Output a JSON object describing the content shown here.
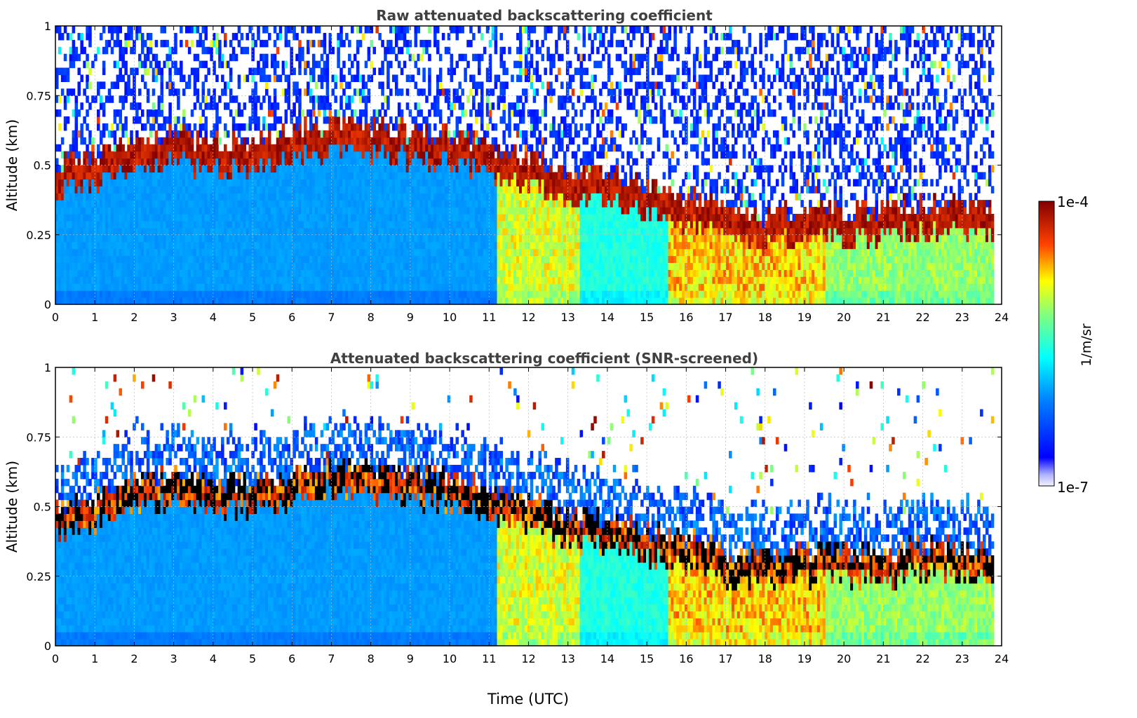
{
  "chart_data": [
    {
      "type": "heatmap",
      "title": "Raw attenuated backscattering coefficient",
      "xlabel": "",
      "ylabel": "Altitude (km)",
      "xlim": [
        0,
        24
      ],
      "ylim": [
        0,
        1
      ],
      "xticks": [
        "0",
        "1",
        "2",
        "3",
        "4",
        "5",
        "6",
        "7",
        "8",
        "9",
        "10",
        "11",
        "12",
        "13",
        "14",
        "15",
        "16",
        "17",
        "18",
        "19",
        "20",
        "21",
        "22",
        "23",
        "24"
      ],
      "yticks": [
        "0",
        "0.25",
        "0.5",
        "0.75",
        "1"
      ],
      "grid": true,
      "screened": false,
      "aerosol_layer_top_km": [
        {
          "t": 0,
          "z": 0.45
        },
        {
          "t": 1,
          "z": 0.5
        },
        {
          "t": 2,
          "z": 0.55
        },
        {
          "t": 3,
          "z": 0.57
        },
        {
          "t": 4,
          "z": 0.55
        },
        {
          "t": 5,
          "z": 0.55
        },
        {
          "t": 6,
          "z": 0.58
        },
        {
          "t": 7,
          "z": 0.62
        },
        {
          "t": 8,
          "z": 0.6
        },
        {
          "t": 9,
          "z": 0.58
        },
        {
          "t": 10,
          "z": 0.57
        },
        {
          "t": 11,
          "z": 0.52
        },
        {
          "t": 12,
          "z": 0.5
        },
        {
          "t": 13,
          "z": 0.43
        },
        {
          "t": 14,
          "z": 0.43
        },
        {
          "t": 15,
          "z": 0.38
        },
        {
          "t": 16,
          "z": 0.35
        },
        {
          "t": 17,
          "z": 0.3
        },
        {
          "t": 18,
          "z": 0.28
        },
        {
          "t": 19,
          "z": 0.3
        },
        {
          "t": 20,
          "z": 0.3
        },
        {
          "t": 21,
          "z": 0.3
        },
        {
          "t": 22,
          "z": 0.32
        },
        {
          "t": 23,
          "z": 0.32
        },
        {
          "t": 23.8,
          "z": 0.3
        }
      ],
      "colorbar": {
        "min_label": "1e-7",
        "max_label": "1e-4",
        "label": "1/m/sr",
        "colormap": "jet"
      }
    },
    {
      "type": "heatmap",
      "title": "Attenuated backscattering coefficient (SNR-screened)",
      "xlabel": "Time (UTC)",
      "ylabel": "Altitude (km)",
      "xlim": [
        0,
        24
      ],
      "ylim": [
        0,
        1
      ],
      "xticks": [
        "0",
        "1",
        "2",
        "3",
        "4",
        "5",
        "6",
        "7",
        "8",
        "9",
        "10",
        "11",
        "12",
        "13",
        "14",
        "15",
        "16",
        "17",
        "18",
        "19",
        "20",
        "21",
        "22",
        "23",
        "24"
      ],
      "yticks": [
        "0",
        "0.25",
        "0.5",
        "0.75",
        "1"
      ],
      "grid": true,
      "screened": true,
      "aerosol_layer_top_km": [
        {
          "t": 0,
          "z": 0.45
        },
        {
          "t": 1,
          "z": 0.5
        },
        {
          "t": 2,
          "z": 0.55
        },
        {
          "t": 3,
          "z": 0.57
        },
        {
          "t": 4,
          "z": 0.55
        },
        {
          "t": 5,
          "z": 0.55
        },
        {
          "t": 6,
          "z": 0.58
        },
        {
          "t": 7,
          "z": 0.62
        },
        {
          "t": 8,
          "z": 0.6
        },
        {
          "t": 9,
          "z": 0.58
        },
        {
          "t": 10,
          "z": 0.57
        },
        {
          "t": 11,
          "z": 0.52
        },
        {
          "t": 12,
          "z": 0.5
        },
        {
          "t": 13,
          "z": 0.43
        },
        {
          "t": 14,
          "z": 0.43
        },
        {
          "t": 15,
          "z": 0.38
        },
        {
          "t": 16,
          "z": 0.35
        },
        {
          "t": 17,
          "z": 0.3
        },
        {
          "t": 18,
          "z": 0.28
        },
        {
          "t": 19,
          "z": 0.3
        },
        {
          "t": 20,
          "z": 0.3
        },
        {
          "t": 21,
          "z": 0.3
        },
        {
          "t": 22,
          "z": 0.32
        },
        {
          "t": 23,
          "z": 0.32
        },
        {
          "t": 23.8,
          "z": 0.3
        }
      ],
      "colorbar": {
        "min_label": "1e-7",
        "max_label": "1e-4",
        "label": "1/m/sr",
        "colormap": "jet"
      }
    }
  ],
  "colorbar": {
    "max_label": "1e-4",
    "min_label": "1e-7",
    "unit": "1/m/sr"
  }
}
